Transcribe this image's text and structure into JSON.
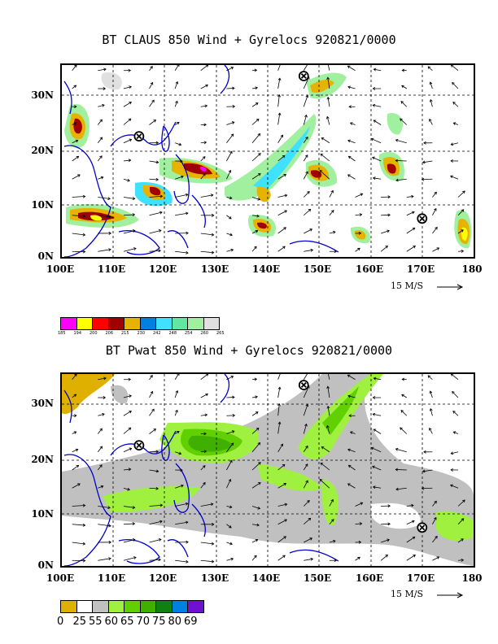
{
  "panel1": {
    "title": "BT CLAUS 850 Wind + Gyrelocs 920821/0000",
    "ylabels": [
      "30N",
      "20N",
      "10N",
      "0N"
    ],
    "xlabels": [
      "100E",
      "110E",
      "120E",
      "130E",
      "140E",
      "150E",
      "160E",
      "170E",
      "180"
    ],
    "ref_vector": "15 M/S",
    "legend_colors": [
      "#ff00ff",
      "#ffff00",
      "#ff0000",
      "#a00000",
      "#e6b400",
      "#0080e0",
      "#40e0ff",
      "#60e8a0",
      "#a0f0a0",
      "#e0e0e0"
    ],
    "legend_ticks": [
      "185",
      "194",
      "200",
      "206",
      "215",
      "230",
      "242",
      "248",
      "254",
      "260",
      "265"
    ]
  },
  "panel2": {
    "title": "BT Pwat 850 Wind + Gyrelocs 920821/0000",
    "ylabels": [
      "30N",
      "20N",
      "10N",
      "0N"
    ],
    "xlabels": [
      "100E",
      "110E",
      "120E",
      "130E",
      "140E",
      "150E",
      "160E",
      "170E",
      "180"
    ],
    "ref_vector": "15 M/S",
    "legend_colors": [
      "#e0b000",
      "#ffffff",
      "#c0c0c0",
      "#a0f040",
      "#60d000",
      "#40b000",
      "#108010",
      "#0080e0",
      "#7010d0"
    ],
    "legend_ticks": [
      "0",
      "25",
      "55",
      "60",
      "65",
      "70",
      "75",
      "80",
      "69"
    ]
  },
  "gyre_markers": [
    {
      "lon": 115,
      "lat": 22
    },
    {
      "lon": 147,
      "lat": 33
    },
    {
      "lon": 170,
      "lat": 7
    }
  ]
}
